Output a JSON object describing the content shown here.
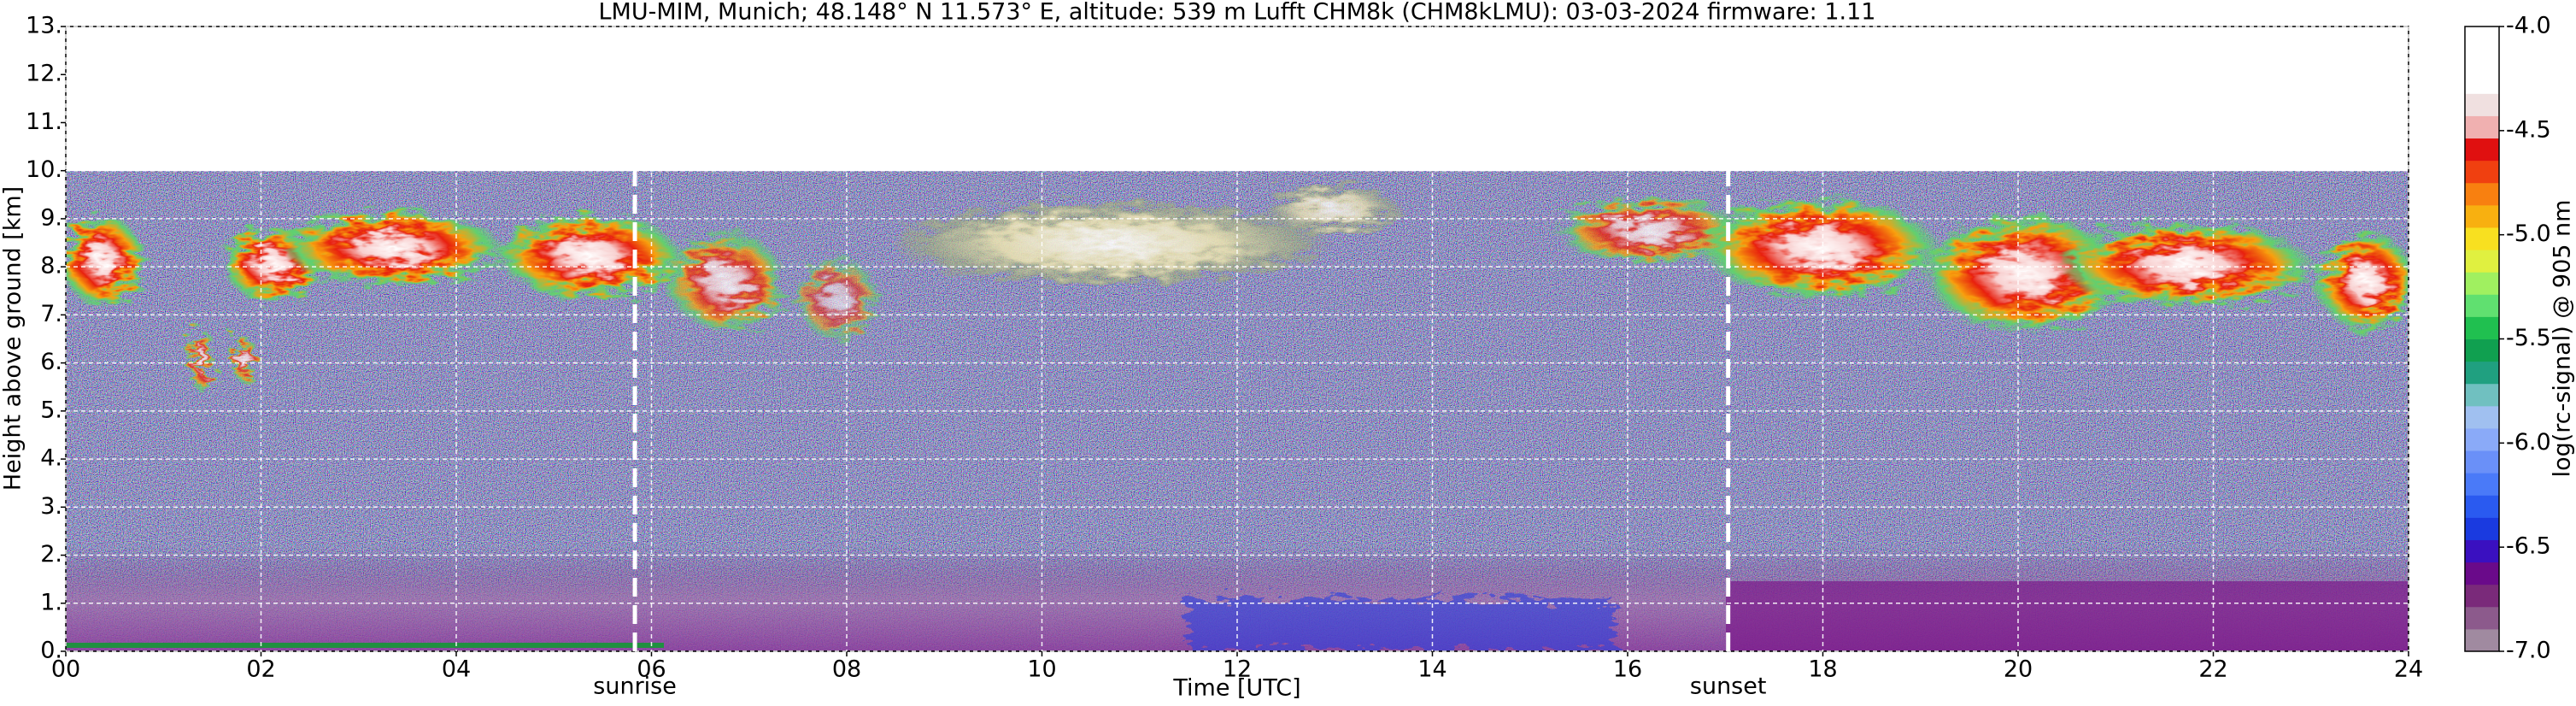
{
  "chart_data": {
    "type": "heatmap",
    "title": "LMU-MIM, Munich; 48.148° N 11.573° E, altitude: 539 m    Lufft CHM8k (CHM8kLMU): 03-03-2024    firmware: 1.11",
    "x_label": "Time [UTC]",
    "y_label": "Height above ground [km]",
    "colorbar_label": "log(rc-signal) @ 905 nm",
    "xlim": [
      0,
      24
    ],
    "xticks": [
      {
        "value": 0,
        "label": "00"
      },
      {
        "value": 2,
        "label": "02"
      },
      {
        "value": 4,
        "label": "04"
      },
      {
        "value": 6,
        "label": "06"
      },
      {
        "value": 8,
        "label": "08"
      },
      10,
      12,
      14,
      16,
      18,
      20,
      22,
      24
    ],
    "ylim": [
      0,
      13
    ],
    "yticks": [
      {
        "value": 0,
        "label": "0."
      },
      {
        "value": 1,
        "label": "1."
      },
      {
        "value": 2,
        "label": "2."
      },
      {
        "value": 3,
        "label": "3."
      },
      {
        "value": 4,
        "label": "4."
      },
      {
        "value": 5,
        "label": "5."
      },
      {
        "value": 6,
        "label": "6."
      },
      {
        "value": 7,
        "label": "7."
      },
      {
        "value": 8,
        "label": "8."
      },
      {
        "value": 9,
        "label": "9."
      },
      {
        "value": 10,
        "label": "10."
      },
      {
        "value": 11,
        "label": "11."
      },
      {
        "value": 12,
        "label": "12."
      },
      {
        "value": 13,
        "label": "13."
      }
    ],
    "clim": [
      -7,
      -4
    ],
    "cticks": [
      {
        "value": -7,
        "label": "-7.0"
      },
      -6.5,
      {
        "value": -6,
        "label": "-6.0"
      },
      -5.5,
      {
        "value": -5,
        "label": "-5.0"
      },
      -4.5,
      {
        "value": -4,
        "label": "-4.0"
      }
    ],
    "colorscale": [
      "#a08aa0",
      "#8c5a8c",
      "#7a2a7a",
      "#6a0a8a",
      "#3a10c0",
      "#1a3ae0",
      "#2a5af0",
      "#4a7af8",
      "#6a90f8",
      "#8aaaf8",
      "#a0c0f0",
      "#70c0c0",
      "#20a080",
      "#10a050",
      "#20c050",
      "#60e070",
      "#a0f060",
      "#e0f040",
      "#f8e020",
      "#f8b010",
      "#f88010",
      "#f04010",
      "#e01010",
      "#f0b0b0",
      "#f0e0e0",
      "#ffffff",
      "#ffffff",
      "#ffffff"
    ],
    "grid": true,
    "annotations": [
      {
        "text": "sunrise",
        "x": 5.83
      },
      {
        "text": "sunset",
        "x": 17.03
      }
    ]
  }
}
